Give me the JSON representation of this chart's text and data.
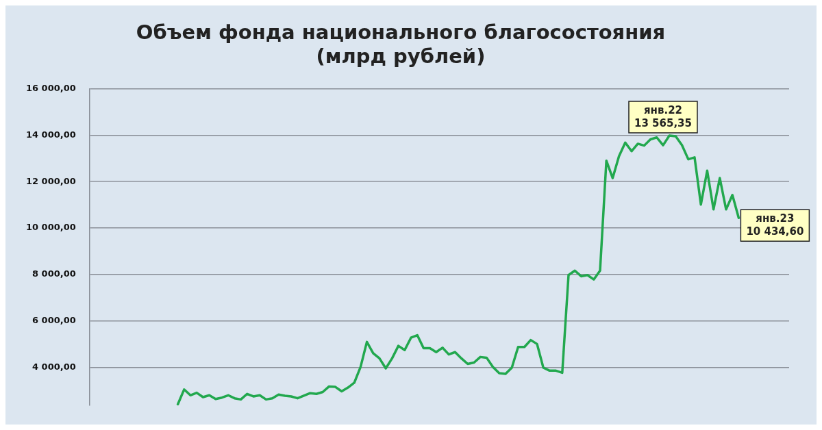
{
  "chart_data": {
    "type": "line",
    "title": "Объем фонда национального благосостояния\n(млрд рублей)",
    "categories": [
      null,
      null,
      null,
      null,
      null,
      null,
      null,
      null,
      null,
      null,
      null,
      null,
      null,
      null,
      null,
      null,
      null,
      null,
      null,
      null,
      null,
      null,
      null,
      null,
      null,
      null,
      null,
      null,
      null,
      null,
      null,
      null,
      null,
      null,
      null,
      null,
      null,
      null,
      null,
      null,
      null,
      null,
      null,
      null,
      null,
      null,
      null,
      null,
      null,
      null,
      null,
      null,
      null,
      null,
      null,
      null,
      null,
      null,
      null,
      null,
      null,
      null,
      null,
      null,
      null,
      null,
      null,
      null,
      null,
      null,
      null,
      null,
      null,
      null,
      null,
      null,
      null,
      null,
      null,
      null,
      null,
      null,
      null,
      null,
      null,
      null,
      null,
      null,
      null,
      null,
      null,
      null,
      null,
      null,
      null,
      null,
      null,
      null,
      null,
      null,
      null,
      null,
      null,
      null,
      null,
      null,
      null,
      null,
      null,
      null,
      null,
      null
    ],
    "series": [
      {
        "color": "#22a84e",
        "values": [
          null,
          null,
          null,
          null,
          null,
          null,
          null,
          null,
          null,
          null,
          null,
          null,
          null,
          null,
          2400,
          3040,
          2790,
          2900,
          2710,
          2790,
          2630,
          2690,
          2790,
          2660,
          2610,
          2850,
          2740,
          2790,
          2610,
          2660,
          2820,
          2770,
          2740,
          2660,
          2770,
          2880,
          2850,
          2930,
          3170,
          3150,
          2960,
          3120,
          3330,
          4010,
          5090,
          4600,
          4380,
          3950,
          4380,
          4920,
          4740,
          5270,
          5380,
          4820,
          4820,
          4650,
          4840,
          4550,
          4650,
          4380,
          4140,
          4200,
          4440,
          4410,
          4010,
          3740,
          3710,
          3980,
          4870,
          4870,
          5170,
          5000,
          3980,
          3850,
          3850,
          3760,
          7970,
          8160,
          7920,
          7970,
          7780,
          8160,
          12900,
          12150,
          13090,
          13680,
          13310,
          13630,
          13550,
          13820,
          13900,
          13565.35,
          13980,
          13950,
          13570,
          12960,
          13040,
          11010,
          12470,
          10800,
          12150,
          10800,
          11420,
          10434.6,
          null,
          null,
          null,
          null,
          null,
          null,
          null,
          null
        ]
      }
    ],
    "ylim": [
      2350,
      16000
    ],
    "yticks": [
      {
        "value": 4000,
        "label": "4 000,00"
      },
      {
        "value": 6000,
        "label": "6 000,00"
      },
      {
        "value": 8000,
        "label": "8 000,00"
      },
      {
        "value": 10000,
        "label": "10 000,00"
      },
      {
        "value": 12000,
        "label": "12 000,00"
      },
      {
        "value": 14000,
        "label": "14 000,00"
      },
      {
        "value": 16000,
        "label": "16 000,00"
      }
    ],
    "tick_labels": "y",
    "grid": "y",
    "marker": "none",
    "line_style": "solid",
    "annotations": [
      {
        "text": "янв.22\n13 565,35",
        "y": 13565.35
      },
      "янв.23\n10 434,60"
    ]
  }
}
